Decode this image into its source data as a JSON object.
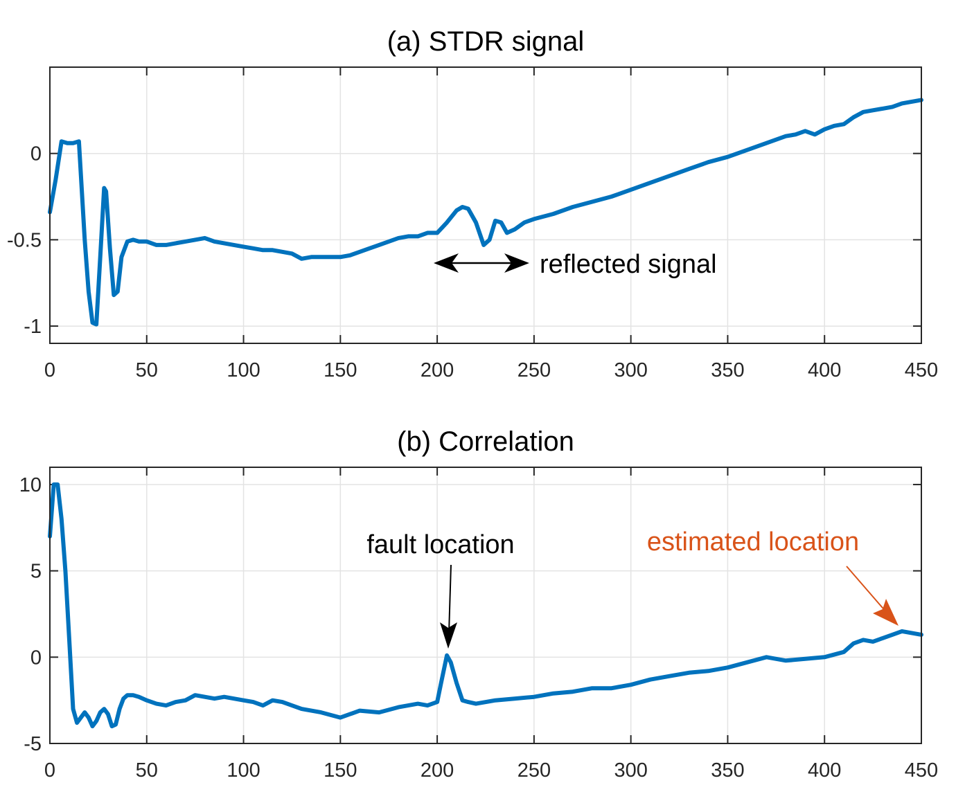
{
  "chart_data": [
    {
      "type": "line",
      "title": "(a) STDR signal",
      "xlim": [
        0,
        450
      ],
      "ylim": [
        -1.1,
        0.5
      ],
      "x_ticks": [
        0,
        50,
        100,
        150,
        200,
        250,
        300,
        350,
        400,
        450
      ],
      "x_tick_labels": [
        "0",
        "50",
        "100",
        "150",
        "200",
        "250",
        "300",
        "350",
        "400",
        "450"
      ],
      "y_ticks": [
        -1,
        -0.5,
        0
      ],
      "y_tick_labels": [
        "-1",
        "-0.5",
        "0"
      ],
      "grid": true,
      "series": [
        {
          "name": "STDR signal",
          "color": "#0072bd",
          "x": [
            0,
            3,
            6,
            9,
            12,
            15,
            18,
            20,
            22,
            24,
            26,
            28,
            29,
            31,
            33,
            35,
            37,
            40,
            43,
            46,
            50,
            55,
            60,
            65,
            70,
            75,
            80,
            85,
            90,
            95,
            100,
            105,
            110,
            115,
            120,
            125,
            130,
            135,
            140,
            145,
            150,
            155,
            160,
            165,
            170,
            175,
            180,
            185,
            190,
            195,
            200,
            205,
            210,
            213,
            216,
            220,
            224,
            227,
            230,
            233,
            236,
            240,
            245,
            250,
            260,
            270,
            280,
            290,
            300,
            310,
            320,
            330,
            340,
            350,
            360,
            370,
            380,
            385,
            390,
            395,
            400,
            405,
            410,
            415,
            420,
            425,
            430,
            435,
            440,
            445,
            450
          ],
          "values": [
            -0.34,
            -0.15,
            0.07,
            0.06,
            0.06,
            0.07,
            -0.5,
            -0.8,
            -0.98,
            -0.99,
            -0.6,
            -0.2,
            -0.22,
            -0.55,
            -0.82,
            -0.8,
            -0.6,
            -0.51,
            -0.5,
            -0.51,
            -0.51,
            -0.53,
            -0.53,
            -0.52,
            -0.51,
            -0.5,
            -0.49,
            -0.51,
            -0.52,
            -0.53,
            -0.54,
            -0.55,
            -0.56,
            -0.56,
            -0.57,
            -0.58,
            -0.61,
            -0.6,
            -0.6,
            -0.6,
            -0.6,
            -0.59,
            -0.57,
            -0.55,
            -0.53,
            -0.51,
            -0.49,
            -0.48,
            -0.48,
            -0.46,
            -0.46,
            -0.4,
            -0.33,
            -0.31,
            -0.32,
            -0.4,
            -0.53,
            -0.5,
            -0.39,
            -0.4,
            -0.46,
            -0.44,
            -0.4,
            -0.38,
            -0.35,
            -0.31,
            -0.28,
            -0.25,
            -0.21,
            -0.17,
            -0.13,
            -0.09,
            -0.05,
            -0.02,
            0.02,
            0.06,
            0.1,
            0.11,
            0.13,
            0.11,
            0.14,
            0.16,
            0.17,
            0.21,
            0.24,
            0.25,
            0.26,
            0.27,
            0.29,
            0.3,
            0.31
          ]
        }
      ],
      "annotations": [
        {
          "text": "reflected signal",
          "color": "#000000",
          "arrow": "double-headed",
          "x_from": 200,
          "x_to": 248,
          "y": -0.64
        }
      ]
    },
    {
      "type": "line",
      "title": "(b) Correlation",
      "xlim": [
        0,
        450
      ],
      "ylim": [
        -5,
        11
      ],
      "x_ticks": [
        0,
        50,
        100,
        150,
        200,
        250,
        300,
        350,
        400,
        450
      ],
      "x_tick_labels": [
        "0",
        "50",
        "100",
        "150",
        "200",
        "250",
        "300",
        "350",
        "400",
        "450"
      ],
      "y_ticks": [
        -5,
        0,
        5,
        10
      ],
      "y_tick_labels": [
        "-5",
        "0",
        "5",
        "10"
      ],
      "grid": true,
      "series": [
        {
          "name": "Correlation",
          "color": "#0072bd",
          "x": [
            0,
            2,
            4,
            6,
            8,
            10,
            12,
            14,
            16,
            18,
            20,
            22,
            24,
            26,
            28,
            30,
            32,
            34,
            36,
            38,
            40,
            43,
            46,
            50,
            55,
            60,
            65,
            70,
            75,
            80,
            85,
            90,
            95,
            100,
            105,
            110,
            115,
            120,
            130,
            140,
            150,
            155,
            160,
            170,
            180,
            190,
            195,
            200,
            202,
            205,
            207,
            210,
            213,
            216,
            220,
            230,
            240,
            250,
            260,
            270,
            280,
            290,
            300,
            310,
            320,
            330,
            340,
            350,
            360,
            370,
            380,
            390,
            400,
            410,
            415,
            420,
            425,
            430,
            435,
            440,
            445,
            450
          ],
          "values": [
            7,
            10,
            10,
            8,
            5,
            1,
            -3,
            -3.8,
            -3.5,
            -3.2,
            -3.5,
            -4,
            -3.7,
            -3.2,
            -3,
            -3.3,
            -4,
            -3.9,
            -3,
            -2.4,
            -2.2,
            -2.2,
            -2.3,
            -2.5,
            -2.7,
            -2.8,
            -2.6,
            -2.5,
            -2.2,
            -2.3,
            -2.4,
            -2.3,
            -2.4,
            -2.5,
            -2.6,
            -2.8,
            -2.5,
            -2.6,
            -3,
            -3.2,
            -3.5,
            -3.3,
            -3.1,
            -3.2,
            -2.9,
            -2.7,
            -2.8,
            -2.6,
            -1.5,
            0.1,
            -0.3,
            -1.5,
            -2.5,
            -2.6,
            -2.7,
            -2.5,
            -2.4,
            -2.3,
            -2.1,
            -2.0,
            -1.8,
            -1.8,
            -1.6,
            -1.3,
            -1.1,
            -0.9,
            -0.8,
            -0.6,
            -0.3,
            0,
            -0.2,
            -0.1,
            0,
            0.3,
            0.8,
            1.0,
            0.9,
            1.1,
            1.3,
            1.5,
            1.4,
            1.3
          ]
        }
      ],
      "annotations": [
        {
          "text": "fault location",
          "color": "#000000",
          "arrow": "single",
          "target_x": 206,
          "target_y": 0.4
        },
        {
          "text": "estimated location",
          "color": "#d95319",
          "arrow": "single",
          "target_x": 443,
          "target_y": 1.6
        }
      ]
    }
  ]
}
